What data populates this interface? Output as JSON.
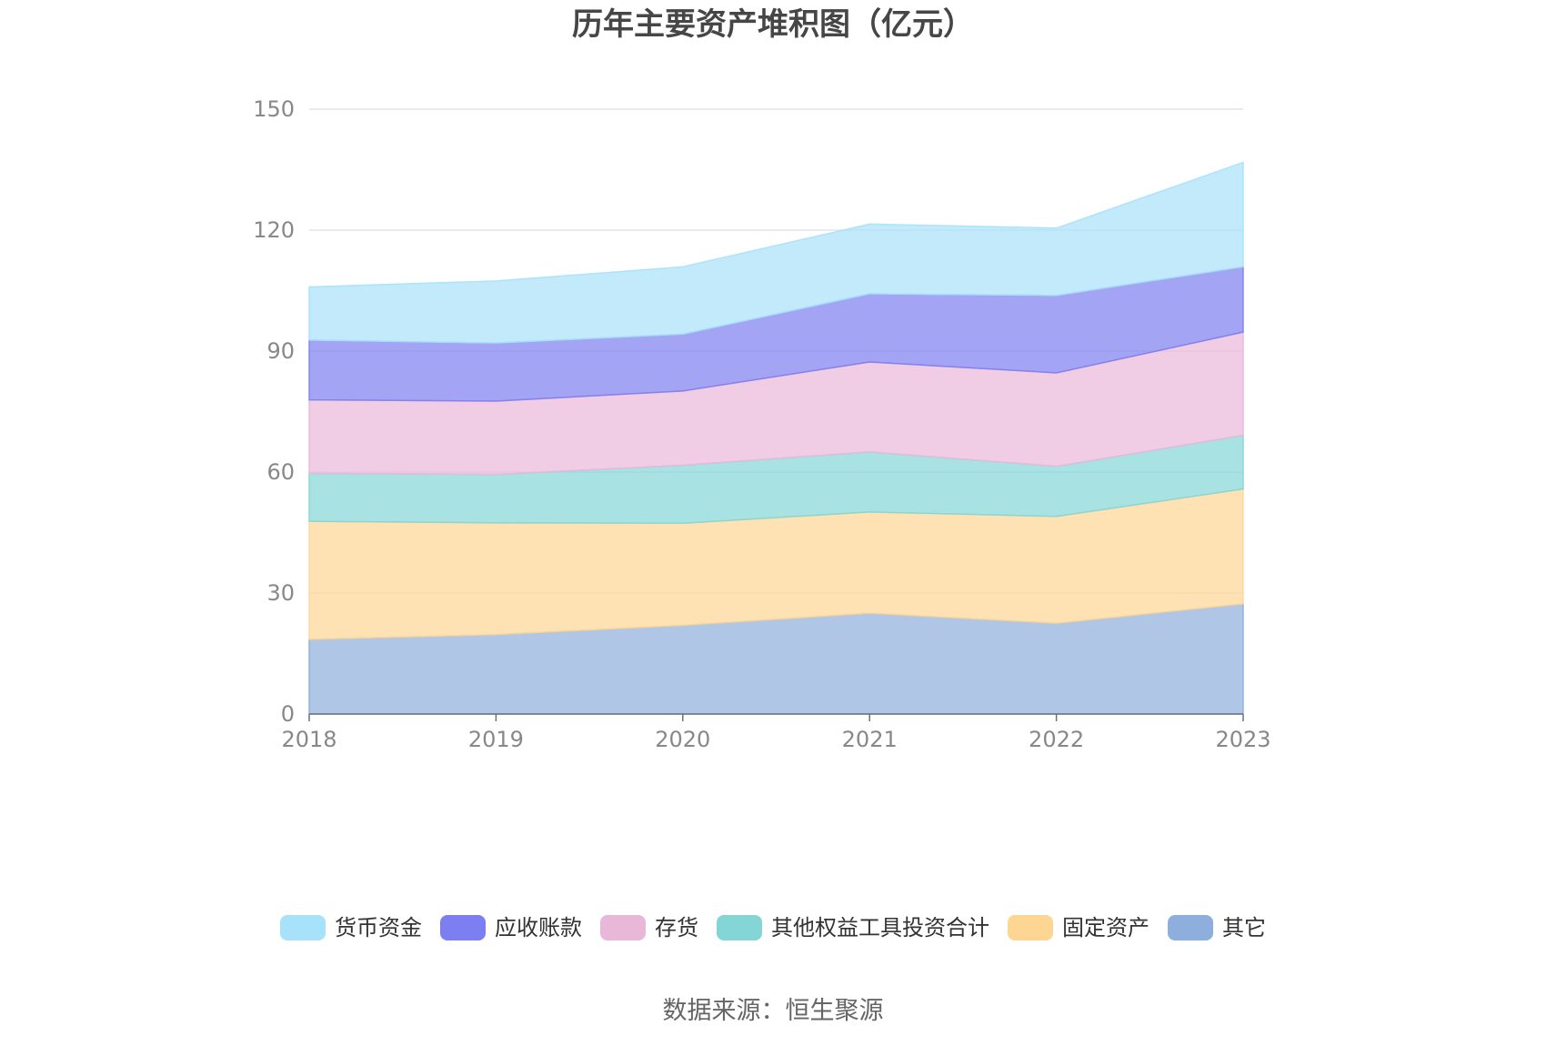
{
  "chart_data": {
    "type": "area",
    "stacked": true,
    "title": "历年主要资产堆积图（亿元）",
    "x": [
      "2018",
      "2019",
      "2020",
      "2021",
      "2022",
      "2023"
    ],
    "yticks": [
      "0",
      "30",
      "60",
      "90",
      "120",
      "150"
    ],
    "ylim": [
      0,
      150
    ],
    "grid": true,
    "legend_position": "bottom",
    "series": [
      {
        "name": "其它",
        "color": "#8eaedd",
        "values": [
          18.5,
          19.7,
          22.0,
          25.0,
          22.5,
          27.3
        ]
      },
      {
        "name": "固定资产",
        "color": "#fdd694",
        "values": [
          29.3,
          27.7,
          25.3,
          25.1,
          26.5,
          28.5
        ]
      },
      {
        "name": "其他权益工具投资合计",
        "color": "#84d6d6",
        "values": [
          11.9,
          12.0,
          14.4,
          14.9,
          12.4,
          13.3
        ]
      },
      {
        "name": "存货",
        "color": "#e9b8d9",
        "values": [
          18.2,
          18.2,
          18.4,
          22.3,
          23.2,
          25.6
        ]
      },
      {
        "name": "应收账款",
        "color": "#7d7ef1",
        "values": [
          14.8,
          14.4,
          14.1,
          16.9,
          19.2,
          16.2
        ]
      },
      {
        "name": "货币资金",
        "color": "#a8e1fa",
        "values": [
          13.2,
          15.4,
          16.7,
          17.3,
          16.7,
          25.9
        ]
      }
    ],
    "legend_order": [
      "货币资金",
      "应收账款",
      "存货",
      "其他权益工具投资合计",
      "固定资产",
      "其它"
    ],
    "source": "数据来源：恒生聚源"
  }
}
